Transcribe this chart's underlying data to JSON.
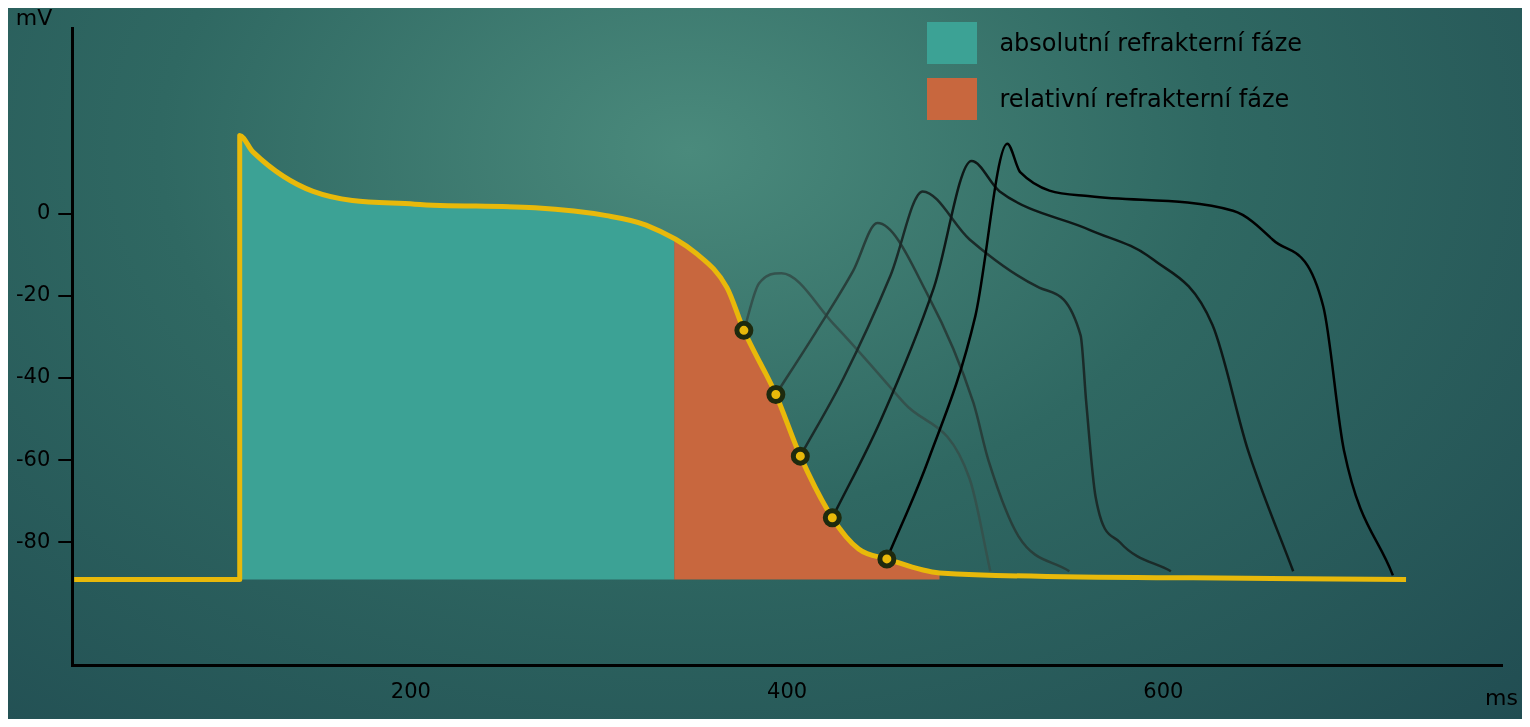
{
  "chart_data": {
    "type": "line",
    "xlabel": "ms",
    "ylabel": "mV",
    "xlim": [
      20,
      780
    ],
    "ylim": [
      -110,
      45
    ],
    "xticks": [
      200,
      400,
      600
    ],
    "yticks": [
      -80,
      -60,
      -40,
      -20,
      0
    ],
    "grid": false,
    "legend": "top right",
    "series": [
      {
        "name": "absolutní refrakterní fáze",
        "type": "area",
        "color": "#3ca295",
        "x": [
          109,
          109,
          116,
          148,
          202,
          266,
          304,
          325,
          340,
          340
        ],
        "values": [
          -89,
          19,
          15,
          5.4,
          2.3,
          1.4,
          -0.5,
          -2.8,
          -6,
          -89
        ]
      },
      {
        "name": "relativní refrakterní fáze",
        "type": "area",
        "color": "#c8673e",
        "x": [
          340,
          340,
          352,
          368,
          377,
          394,
          407,
          424,
          438,
          453,
          481,
          481
        ],
        "values": [
          -89,
          -6,
          -9.8,
          -18,
          -28.4,
          -44,
          -59,
          -74,
          -81.6,
          -84,
          -87.4,
          -89
        ]
      },
      {
        "type": "line",
        "color": "#34524d",
        "marker": "none",
        "x": [
          377,
          385,
          397,
          425,
          462,
          497,
          508
        ],
        "values": [
          -28.4,
          -17,
          -14.5,
          -27,
          -46,
          -64.5,
          -87
        ]
      },
      {
        "type": "line",
        "color": "#283f3b",
        "marker": "none",
        "x": [
          394,
          415,
          435,
          448,
          475,
          499,
          507,
          523,
          550
        ],
        "values": [
          -44,
          -29,
          -14,
          -2.3,
          -20,
          -46,
          -60,
          -78.5,
          -87
        ]
      },
      {
        "type": "line",
        "color": "#1b2b29",
        "marker": "none",
        "x": [
          407,
          430,
          455,
          472,
          497,
          534,
          556,
          559,
          564,
          577,
          604
        ],
        "values": [
          -59,
          -40,
          -15,
          5.4,
          -6.3,
          -18,
          -29.6,
          -46,
          -69,
          -80,
          -87
        ]
      },
      {
        "type": "line",
        "color": "#0e1817",
        "marker": "none",
        "x": [
          424,
          450,
          478,
          498,
          513,
          561,
          594,
          626,
          645,
          669
        ],
        "values": [
          -74,
          -50,
          -18,
          12.8,
          5.4,
          -4,
          -11,
          -27,
          -57.6,
          -87
        ]
      },
      {
        "type": "line",
        "color": "#000000",
        "marker": "none",
        "x": [
          453,
          475,
          500,
          517,
          524,
          561,
          637,
          658,
          685,
          696,
          722
        ],
        "values": [
          -84,
          -60,
          -25,
          17,
          10,
          4.2,
          0.7,
          -6.3,
          -22.6,
          -57.6,
          -88
        ]
      },
      {
        "type": "line",
        "color": "#e8b90a",
        "marker": "none",
        "x": [
          21,
          109,
          109,
          116,
          148,
          202,
          266,
          304,
          325,
          352,
          368,
          377,
          394,
          407,
          424,
          438,
          453,
          481,
          616,
          729
        ],
        "values": [
          -89,
          -89,
          19,
          15,
          5.4,
          2.3,
          1.4,
          -0.5,
          -2.8,
          -9.8,
          -18,
          -28.4,
          -44,
          -59,
          -74,
          -81.6,
          -84,
          -87.4,
          -88.6,
          -89
        ]
      },
      {
        "type": "scatter",
        "color": "#1e2a0e",
        "marker": "circle",
        "x": [
          377,
          394,
          407,
          424,
          453
        ],
        "values": [
          -28.4,
          -44,
          -59,
          -74,
          -84
        ]
      }
    ]
  }
}
